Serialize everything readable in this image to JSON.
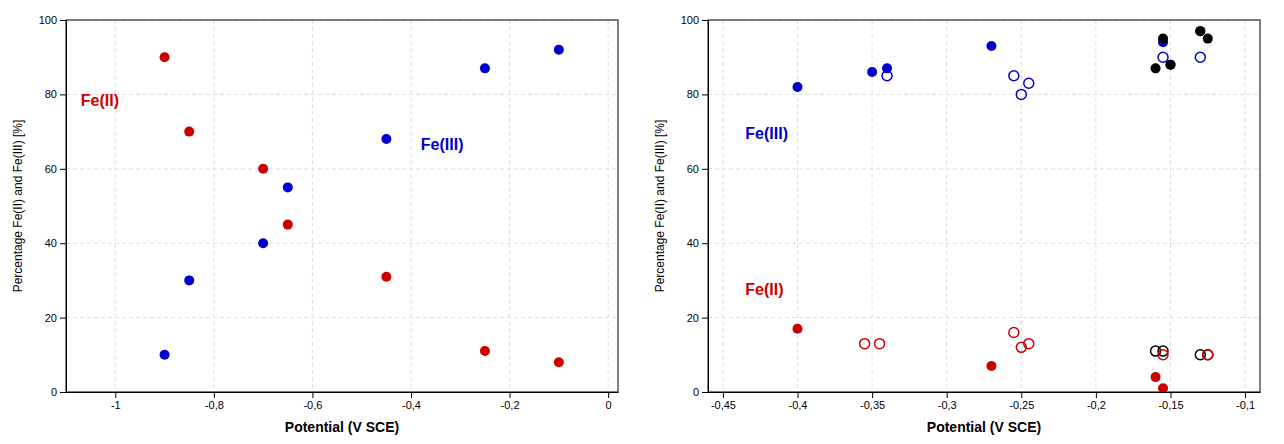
{
  "chart_data": [
    {
      "type": "scatter",
      "xlabel": "Potential (V SCE)",
      "ylabel": "Percentage Fe(II) and Fe(III) [%]",
      "xlim": [
        -1.1,
        0.02
      ],
      "ylim": [
        0,
        100
      ],
      "xticks": [
        -1,
        {
          "value": -0.8,
          "label": "-0,8"
        },
        {
          "value": -0.6,
          "label": "-0,6"
        },
        {
          "value": -0.4,
          "label": "-0,4"
        },
        {
          "value": -0.2,
          "label": "-0,2"
        },
        0
      ],
      "yticks": [
        0,
        20,
        40,
        60,
        80,
        100
      ],
      "grid": true,
      "series": [
        {
          "color": "#cc0000",
          "marker": "circle",
          "x": [
            -0.9,
            -0.85,
            -0.7,
            -0.65,
            -0.45,
            -0.25,
            -0.1
          ],
          "values": [
            90,
            70,
            60,
            45,
            31,
            11,
            8
          ]
        },
        {
          "color": "#0000cc",
          "marker": "circle",
          "x": [
            -0.9,
            -0.85,
            -0.7,
            -0.65,
            -0.45,
            -0.25,
            -0.1
          ],
          "values": [
            10,
            30,
            40,
            55,
            68,
            87,
            92
          ]
        }
      ],
      "annotations": [
        {
          "text": "Fe(II)",
          "x": -1.07,
          "y": 77,
          "color": "#cc0000"
        },
        {
          "text": "Fe(III)",
          "x": -0.38,
          "y": 65,
          "color": "#0000cc"
        }
      ]
    },
    {
      "type": "scatter",
      "xlabel": "Potential (V SCE)",
      "ylabel": "Percentage Fe(II) and Fe(III) [%]",
      "xlim": [
        -0.46,
        -0.09
      ],
      "ylim": [
        0,
        100
      ],
      "xticks": [
        {
          "value": -0.45,
          "label": "-0,45"
        },
        {
          "value": -0.4,
          "label": "-0,4"
        },
        {
          "value": -0.35,
          "label": "-0,35"
        },
        {
          "value": -0.3,
          "label": "-0,3"
        },
        {
          "value": -0.25,
          "label": "-0,25"
        },
        {
          "value": -0.2,
          "label": "-0,2"
        },
        {
          "value": -0.15,
          "label": "-0,15"
        },
        {
          "value": -0.1,
          "label": "-0,1"
        }
      ],
      "yticks": [
        0,
        20,
        40,
        60,
        80,
        100
      ],
      "grid": true,
      "series": [
        {
          "color": "#0000cc",
          "marker": "circle",
          "x": [
            -0.4,
            -0.35,
            -0.34,
            -0.27,
            -0.155,
            -0.15,
            -0.13
          ],
          "values": [
            82,
            86,
            87,
            93,
            94,
            88,
            97
          ]
        },
        {
          "color": "#0000cc",
          "marker": "circle-open",
          "x": [
            -0.34,
            -0.255,
            -0.25,
            -0.245,
            -0.155,
            -0.13
          ],
          "values": [
            85,
            85,
            80,
            83,
            90,
            90
          ]
        },
        {
          "color": "#000000",
          "marker": "circle",
          "x": [
            -0.16,
            -0.155,
            -0.15,
            -0.13,
            -0.125
          ],
          "values": [
            87,
            95,
            88,
            97,
            95
          ]
        },
        {
          "color": "#000000",
          "marker": "circle-open",
          "x": [
            -0.16,
            -0.155,
            -0.13,
            -0.125
          ],
          "values": [
            11,
            11,
            10,
            10
          ]
        },
        {
          "color": "#cc0000",
          "marker": "circle",
          "x": [
            -0.4,
            -0.27,
            -0.16,
            -0.155
          ],
          "values": [
            17,
            7,
            4,
            1
          ]
        },
        {
          "color": "#cc0000",
          "marker": "circle-open",
          "x": [
            -0.355,
            -0.345,
            -0.255,
            -0.25,
            -0.245,
            -0.155,
            -0.125
          ],
          "values": [
            13,
            13,
            16,
            12,
            13,
            10,
            10
          ]
        }
      ],
      "annotations": [
        {
          "text": "Fe(II)",
          "x": -0.435,
          "y": 26,
          "color": "#cc0000"
        },
        {
          "text": "Fe(III)",
          "x": -0.435,
          "y": 68,
          "color": "#0000cc"
        }
      ]
    }
  ]
}
